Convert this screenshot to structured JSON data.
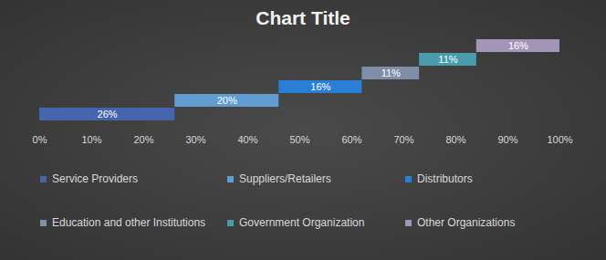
{
  "chart_data": {
    "type": "bar",
    "title": "Chart Title",
    "orientation": "horizontal",
    "stacked": true,
    "data_labels": true,
    "grid": false,
    "legend": "bottom",
    "tick_labels": "x",
    "xlim": [
      0,
      100
    ],
    "xticks": [
      {
        "value": 0,
        "label": "0%"
      },
      {
        "value": 10,
        "label": "10%"
      },
      {
        "value": 20,
        "label": "20%"
      },
      {
        "value": 30,
        "label": "30%"
      },
      {
        "value": 40,
        "label": "40%"
      },
      {
        "value": 50,
        "label": "50%"
      },
      {
        "value": 60,
        "label": "60%"
      },
      {
        "value": 70,
        "label": "70%"
      },
      {
        "value": 80,
        "label": "80%"
      },
      {
        "value": 90,
        "label": "90%"
      },
      {
        "value": 100,
        "label": "100%"
      }
    ],
    "series": [
      {
        "name": "Service Providers",
        "color": "#4464ad",
        "values": [
          26
        ],
        "value_labels": [
          "26%"
        ]
      },
      {
        "name": "Suppliers/Retailers",
        "color": "#629dd1",
        "values": [
          20
        ],
        "value_labels": [
          "20%"
        ]
      },
      {
        "name": "Distributors",
        "color": "#297fd5",
        "values": [
          16
        ],
        "value_labels": [
          "16%"
        ]
      },
      {
        "name": "Education and other Institutions",
        "color": "#7f8fa9",
        "values": [
          11
        ],
        "value_labels": [
          "11%"
        ]
      },
      {
        "name": "Government Organization",
        "color": "#4a9bac",
        "values": [
          11
        ],
        "value_labels": [
          "11%"
        ]
      },
      {
        "name": "Other Organizations",
        "color": "#a395b8",
        "values": [
          16
        ],
        "value_labels": [
          "16%"
        ]
      }
    ]
  }
}
